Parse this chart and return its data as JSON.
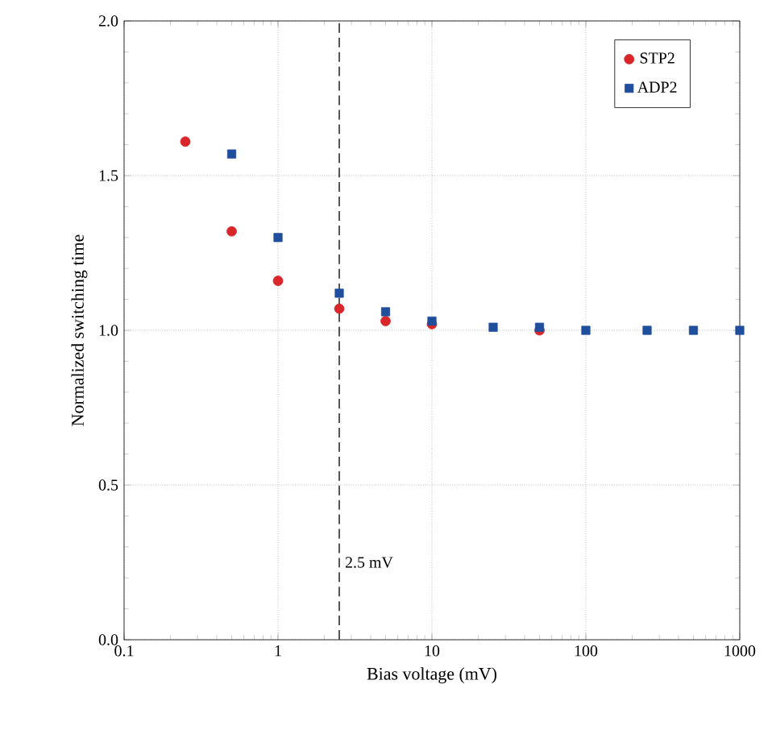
{
  "chart_data": {
    "type": "scatter",
    "xlabel": "Bias voltage (mV)",
    "ylabel": "Normalized switching time",
    "log": "x",
    "xlim": [
      0.1,
      1000
    ],
    "ylim": [
      0,
      2.0
    ],
    "xticks": [
      0.1,
      1,
      10,
      100,
      1000
    ],
    "yticks": [
      {
        "value": 0,
        "label": "0.0"
      },
      {
        "value": 0.5,
        "label": "0.5"
      },
      {
        "value": 1,
        "label": "1.0"
      },
      {
        "value": 1.5,
        "label": "1.5"
      },
      {
        "value": 2,
        "label": "2.0"
      }
    ],
    "grid": true,
    "legend": "top right",
    "ref_lines": [
      {
        "axis": "x",
        "value": 2.5,
        "label": "2.5 mV",
        "line_style": "dashed",
        "color": "#555555"
      }
    ],
    "series": [
      {
        "name": "STP2",
        "color": "#d9262a",
        "marker": "circle",
        "x": [
          0.25,
          0.5,
          1,
          2.5,
          5,
          10,
          50
        ],
        "values": [
          1.61,
          1.32,
          1.16,
          1.07,
          1.03,
          1.02,
          1.0
        ]
      },
      {
        "name": "ADP2",
        "color": "#1f4e9c",
        "marker": "square",
        "x": [
          0.5,
          1,
          2.5,
          5,
          10,
          25,
          50,
          100,
          250,
          500,
          1000
        ],
        "values": [
          1.57,
          1.3,
          1.12,
          1.06,
          1.03,
          1.01,
          1.01,
          1.0,
          1.0,
          1.0,
          1.0
        ]
      }
    ]
  }
}
